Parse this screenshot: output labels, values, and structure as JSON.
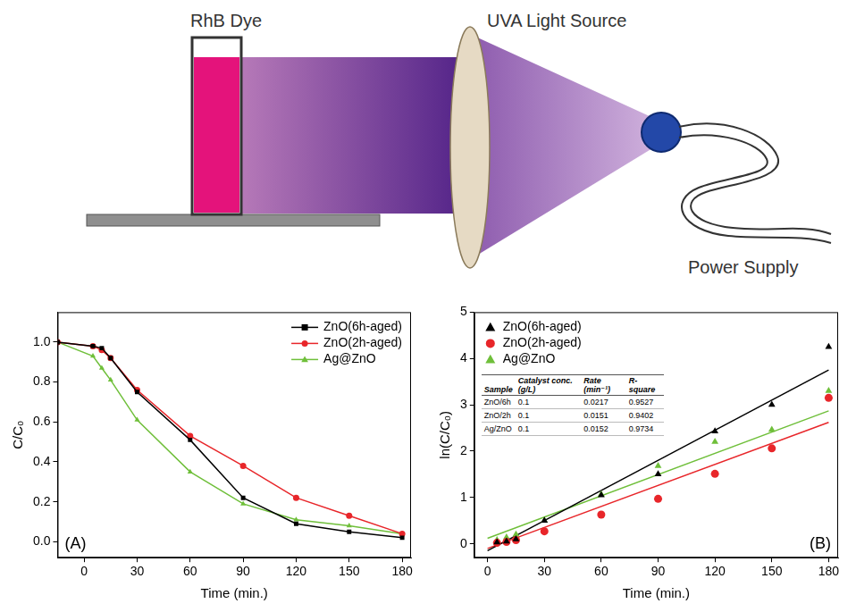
{
  "diagram": {
    "labels": {
      "dye": "RhB Dye",
      "light": "UVA Light Source",
      "power": "Power Supply"
    }
  },
  "chart_data": [
    {
      "type": "line",
      "annotations": [
        "(A)"
      ],
      "x_label": "Time (min.)",
      "y_label": "C/C₀",
      "xlim": [
        -15,
        185
      ],
      "xticks": [
        0,
        30,
        60,
        90,
        120,
        150,
        180
      ],
      "ylim": [
        -0.08,
        1.15
      ],
      "yticks": [
        {
          "value": 0,
          "label": "0.0"
        },
        0.2,
        0.4,
        0.6,
        0.8,
        {
          "value": 1,
          "label": "1.0"
        }
      ],
      "grid": false,
      "legend": "top-right",
      "x": [
        -15,
        5,
        10,
        15,
        30,
        60,
        90,
        120,
        150,
        180
      ],
      "series": [
        {
          "name": "ZnO(6h-aged)",
          "color": "#000000",
          "marker": "square",
          "line_style": "solid",
          "values": [
            1.0,
            0.98,
            0.97,
            0.92,
            0.75,
            0.51,
            0.22,
            0.09,
            0.05,
            0.02
          ]
        },
        {
          "name": "ZnO(2h-aged)",
          "color": "#e8262a",
          "marker": "circle",
          "line_style": "solid",
          "values": [
            1.0,
            0.98,
            0.96,
            0.92,
            0.76,
            0.53,
            0.38,
            0.22,
            0.13,
            0.04
          ]
        },
        {
          "name": "Ag@ZnO",
          "color": "#6fbf3a",
          "marker": "triangle",
          "line_style": "solid",
          "values": [
            1.0,
            0.93,
            0.87,
            0.81,
            0.61,
            0.35,
            0.19,
            0.11,
            0.08,
            0.04
          ]
        }
      ]
    },
    {
      "type": "scatter",
      "annotations": [
        "(B)"
      ],
      "x_label": "Time (min.)",
      "y_label": "ln(C/C₀)",
      "xlim": [
        -7,
        185
      ],
      "xticks": [
        0,
        30,
        60,
        90,
        120,
        150,
        180
      ],
      "ylim": [
        -0.3,
        5
      ],
      "yticks": [
        0,
        1,
        2,
        3,
        4,
        5
      ],
      "grid": false,
      "legend": "top-left",
      "x": [
        5,
        10,
        15,
        30,
        60,
        90,
        120,
        150,
        180
      ],
      "series": [
        {
          "name": "ZnO(6h-aged)",
          "color": "#000000",
          "marker": "triangle",
          "values": [
            0.03,
            0.05,
            0.1,
            0.5,
            1.05,
            1.5,
            2.43,
            3.0,
            4.25
          ],
          "fit": {
            "x": [
              0,
              180
            ],
            "values": [
              -0.15,
              3.75
            ]
          }
        },
        {
          "name": "ZnO(2h-aged)",
          "color": "#e8262a",
          "marker": "circle",
          "values": [
            0.02,
            0.04,
            0.08,
            0.27,
            0.63,
            0.97,
            1.51,
            2.06,
            3.15
          ],
          "fit": {
            "x": [
              0,
              180
            ],
            "values": [
              -0.1,
              2.62
            ]
          }
        },
        {
          "name": "Ag@ZnO",
          "color": "#6fbf3a",
          "marker": "triangle",
          "values": [
            0.08,
            0.14,
            0.2,
            0.5,
            1.07,
            1.68,
            2.2,
            2.46,
            3.3
          ],
          "fit": {
            "x": [
              0,
              180
            ],
            "values": [
              0.12,
              2.87
            ]
          }
        }
      ],
      "table": {
        "header": [
          "Sample",
          "Catalyst conc. (g/L)",
          "Rate (min⁻¹)",
          "R-square"
        ],
        "rows": [
          [
            "ZnO/6h",
            0.1,
            0.0217,
            0.9527
          ],
          [
            "ZnO/2h",
            0.1,
            0.0151,
            0.9402
          ],
          [
            "Ag/ZnO",
            0.1,
            0.0152,
            0.9734
          ]
        ]
      }
    }
  ]
}
